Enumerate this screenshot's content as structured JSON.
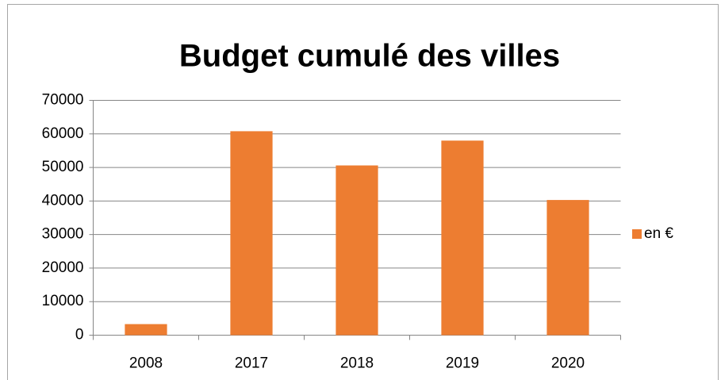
{
  "chart_data": {
    "type": "bar",
    "title": "Budget cumulé des villes",
    "categories": [
      "2008",
      "2017",
      "2018",
      "2019",
      "2020"
    ],
    "series": [
      {
        "name": "en €",
        "color": "#ed7d31",
        "values": [
          3300,
          60800,
          50600,
          58000,
          40300
        ]
      }
    ],
    "ylim": [
      0,
      70000
    ],
    "yticks": [
      0,
      10000,
      20000,
      30000,
      40000,
      50000,
      60000,
      70000
    ],
    "grid": true,
    "legend": "right"
  }
}
